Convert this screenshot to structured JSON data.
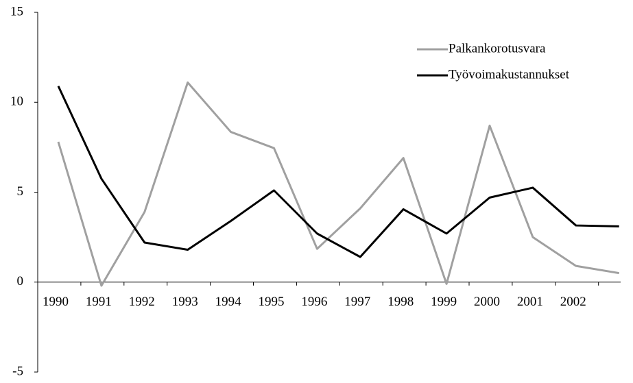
{
  "chart_data": {
    "type": "line",
    "categories": [
      "1990",
      "1991",
      "1992",
      "1993",
      "1994",
      "1995",
      "1996",
      "1997",
      "1998",
      "1999",
      "2000",
      "2001",
      "2002",
      null
    ],
    "series": [
      {
        "name": "Palkankorotusvara",
        "color": "#a0a0a0",
        "values": [
          7.8,
          -0.2,
          3.9,
          11.1,
          8.35,
          7.45,
          1.85,
          4.1,
          6.9,
          -0.1,
          8.7,
          2.5,
          0.9,
          0.5
        ]
      },
      {
        "name": "Työvoimakustannukset",
        "color": "#000000",
        "values": [
          10.9,
          5.75,
          2.2,
          1.8,
          3.4,
          5.1,
          2.7,
          1.4,
          4.05,
          2.7,
          4.7,
          5.25,
          3.15,
          3.1
        ]
      }
    ],
    "ylim": [
      -5,
      15
    ],
    "yticks": [
      -5,
      0,
      5,
      10,
      15
    ],
    "legend": "upper right"
  }
}
